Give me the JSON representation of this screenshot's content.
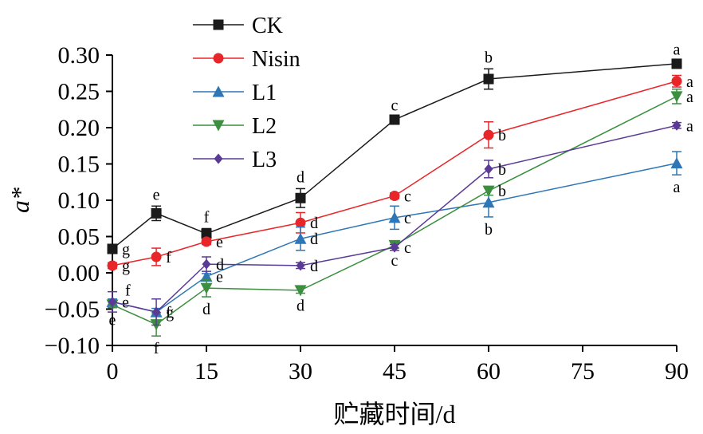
{
  "chart_data": {
    "type": "line",
    "title": "",
    "xlabel": "贮藏时间/d",
    "ylabel": "a*",
    "xlim": [
      0,
      90
    ],
    "ylim": [
      -0.1,
      0.3
    ],
    "x_ticks": [
      0,
      15,
      30,
      45,
      60,
      75,
      90
    ],
    "x_tick_labels": [
      "0",
      "15",
      "30",
      "45",
      "60",
      "75",
      "90"
    ],
    "y_ticks": [
      -0.1,
      -0.05,
      0.0,
      0.05,
      0.1,
      0.15,
      0.2,
      0.25,
      0.3
    ],
    "y_tick_labels": [
      "−0.10",
      "−0.05",
      "0.00",
      "0.05",
      "0.10",
      "0.15",
      "0.20",
      "0.25",
      "0.30"
    ],
    "x": [
      0,
      7,
      15,
      30,
      45,
      60,
      90
    ],
    "legend_position": "top-left",
    "series": [
      {
        "name": "CK",
        "color": "#1a1a1a",
        "marker": "square",
        "values": [
          0.033,
          0.082,
          0.054,
          0.103,
          0.211,
          0.267,
          0.288
        ],
        "errors": [
          0.006,
          0.01,
          0.007,
          0.013,
          0.004,
          0.014,
          0.004
        ],
        "labels": [
          "g",
          "e",
          "f",
          "d",
          "c",
          "b",
          "a"
        ],
        "label_pos": [
          "right",
          "above",
          "above",
          "above",
          "above",
          "above",
          "above"
        ]
      },
      {
        "name": "Nisin",
        "color": "#e8262a",
        "marker": "circle",
        "values": [
          0.01,
          0.022,
          0.043,
          0.069,
          0.106,
          0.19,
          0.264
        ],
        "errors": [
          0.004,
          0.012,
          0.004,
          0.014,
          0.004,
          0.018,
          0.008
        ],
        "labels": [
          "g",
          "f",
          "e",
          "d",
          "c",
          "b",
          "a"
        ],
        "label_pos": [
          "right",
          "right",
          "right",
          "right",
          "right",
          "right",
          "right"
        ]
      },
      {
        "name": "L1",
        "color": "#2e76b5",
        "marker": "triangle-up",
        "values": [
          -0.04,
          -0.054,
          -0.005,
          0.047,
          0.076,
          0.097,
          0.151
        ],
        "errors": [
          0.004,
          0.005,
          0.004,
          0.016,
          0.016,
          0.02,
          0.016
        ],
        "labels": [
          "e",
          "g",
          "e",
          "d",
          "c",
          "b",
          "a"
        ],
        "label_pos": [
          "right",
          "right",
          "right",
          "right",
          "right",
          "below",
          "below"
        ]
      },
      {
        "name": "L2",
        "color": "#3b8f3e",
        "marker": "triangle-down",
        "values": [
          -0.044,
          -0.071,
          -0.021,
          -0.024,
          0.038,
          0.113,
          0.243
        ],
        "errors": [
          0.004,
          0.016,
          0.012,
          0.004,
          0.004,
          0.006,
          0.01
        ],
        "labels": [
          "e",
          "f",
          "d",
          "d",
          "c",
          "b",
          "a"
        ],
        "label_pos": [
          "below",
          "below",
          "below",
          "below",
          "below",
          "right",
          "right"
        ]
      },
      {
        "name": "L3",
        "color": "#5b3a96",
        "marker": "diamond",
        "values": [
          -0.04,
          -0.054,
          0.012,
          0.01,
          0.035,
          0.143,
          0.203
        ],
        "errors": [
          0.014,
          0.018,
          0.01,
          0.004,
          0.004,
          0.012,
          0.004
        ],
        "labels": [
          "f",
          "f",
          "d",
          "d",
          "c",
          "b",
          "a"
        ],
        "label_pos": [
          "above-right",
          "right",
          "right",
          "right",
          "right",
          "right",
          "right"
        ]
      }
    ]
  }
}
